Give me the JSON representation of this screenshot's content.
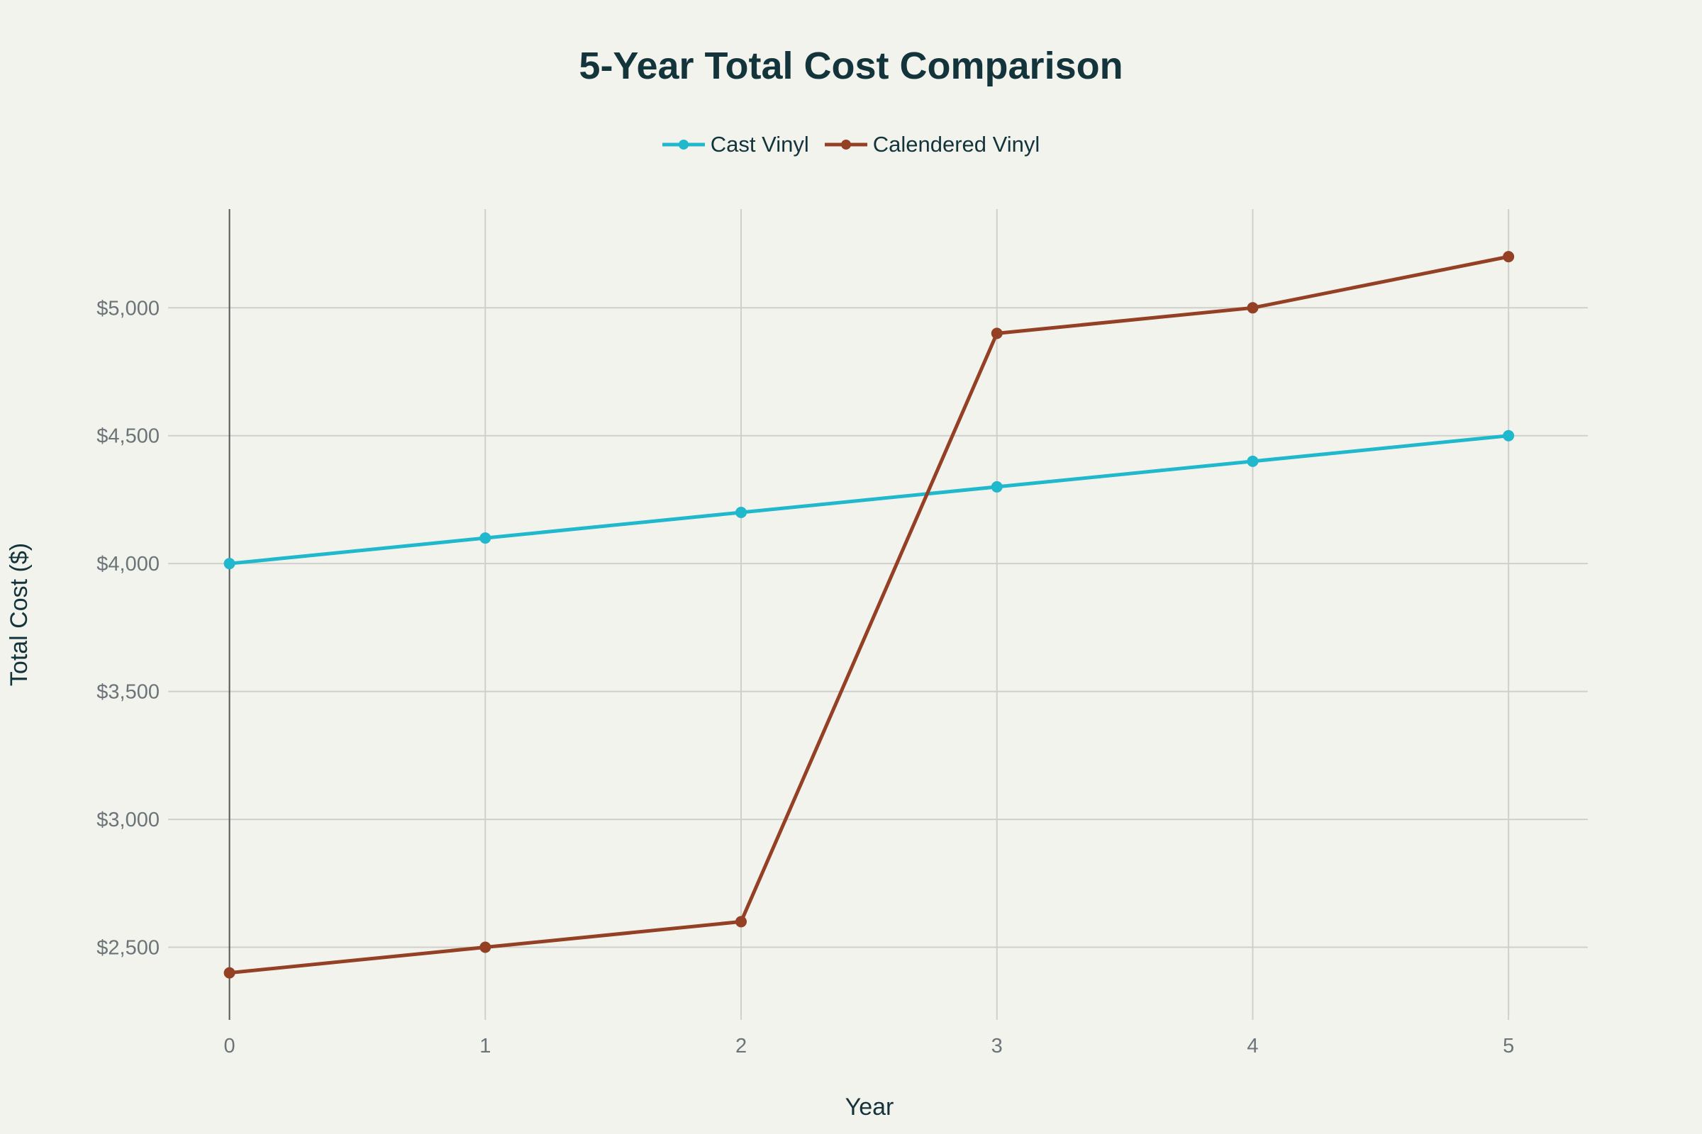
{
  "chart_data": {
    "type": "line",
    "title": "5-Year Total Cost Comparison",
    "xlabel": "Year",
    "ylabel": "Total Cost ($)",
    "x": [
      0,
      1,
      2,
      3,
      4,
      5
    ],
    "xticks": [
      "0",
      "1",
      "2",
      "3",
      "4",
      "5"
    ],
    "yticks": [
      "$2,500",
      "$3,000",
      "$3,500",
      "$4,000",
      "$4,500",
      "$5,000"
    ],
    "ytick_values": [
      2500,
      3000,
      3500,
      4000,
      4500,
      5000
    ],
    "xlim": [
      -0.24,
      5.31
    ],
    "ylim": [
      2216,
      5386
    ],
    "grid": true,
    "legend_position": "top-center",
    "series": [
      {
        "name": "Cast Vinyl",
        "color": "#1fb8cd",
        "values": [
          4000,
          4100,
          4200,
          4300,
          4400,
          4500
        ]
      },
      {
        "name": "Calendered Vinyl",
        "color": "#944025",
        "values": [
          2400,
          2500,
          2600,
          4900,
          5000,
          5200
        ]
      }
    ]
  }
}
